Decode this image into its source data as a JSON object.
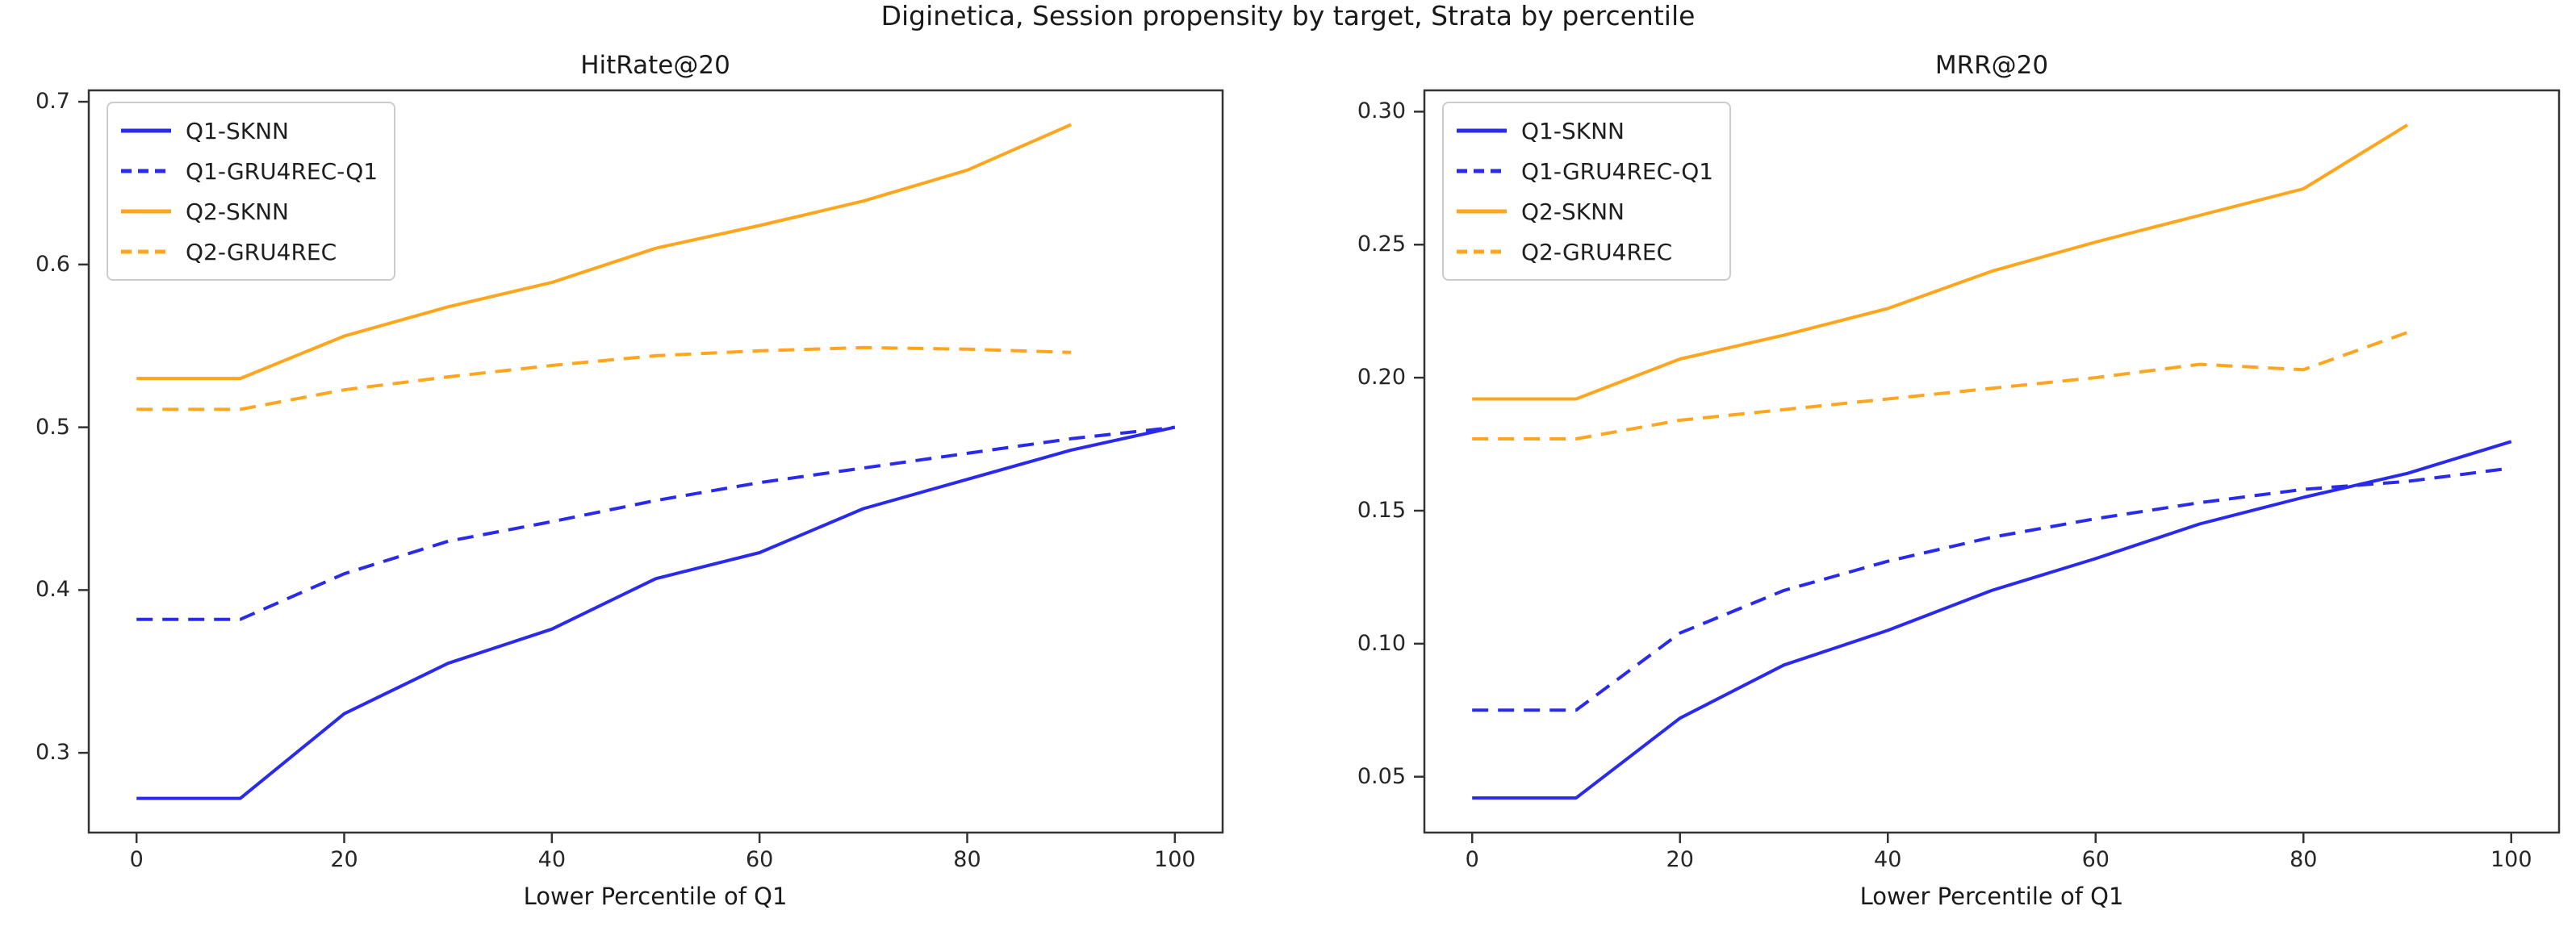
{
  "page_title": "Diginetica, Session propensity by target, Strata by percentile",
  "colors": {
    "line_blue": "#2a2aee",
    "line_orange": "#ffa51e",
    "axis": "#333333",
    "tick_text": "#262626",
    "text": "#1a1a1a",
    "legend_border": "#cccccc",
    "background": "#ffffff"
  },
  "legend_entries": [
    "Q1-SKNN",
    "Q1-GRU4REC-Q1",
    "Q2-SKNN",
    "Q2-GRU4REC"
  ],
  "chart_data": [
    {
      "type": "line",
      "title": "HitRate@20",
      "xlabel": "Lower Percentile of Q1",
      "grid": false,
      "legend_position": "upper-left",
      "xlim": [
        -4.6,
        104.6
      ],
      "ylim": [
        0.251,
        0.707
      ],
      "x_ticks": [
        {
          "v": 0,
          "label": "0"
        },
        {
          "v": 20,
          "label": "20"
        },
        {
          "v": 40,
          "label": "40"
        },
        {
          "v": 60,
          "label": "60"
        },
        {
          "v": 80,
          "label": "80"
        },
        {
          "v": 100,
          "label": "100"
        }
      ],
      "y_ticks": [
        {
          "v": 0.3,
          "label": "0.3"
        },
        {
          "v": 0.4,
          "label": "0.4"
        },
        {
          "v": 0.5,
          "label": "0.5"
        },
        {
          "v": 0.6,
          "label": "0.6"
        },
        {
          "v": 0.7,
          "label": "0.7"
        }
      ],
      "series": [
        {
          "name": "Q1-SKNN",
          "color": "#2a2aee",
          "dash": false,
          "x": [
            0,
            10,
            20,
            30,
            40,
            50,
            60,
            70,
            80,
            90,
            100
          ],
          "values": [
            0.272,
            0.272,
            0.324,
            0.355,
            0.376,
            0.407,
            0.423,
            0.45,
            0.468,
            0.486,
            0.5
          ]
        },
        {
          "name": "Q1-GRU4REC-Q1",
          "color": "#2a2aee",
          "dash": true,
          "x": [
            0,
            10,
            20,
            30,
            40,
            50,
            60,
            70,
            80,
            90,
            100
          ],
          "values": [
            0.382,
            0.382,
            0.41,
            0.43,
            0.442,
            0.455,
            0.466,
            0.475,
            0.484,
            0.493,
            0.5
          ]
        },
        {
          "name": "Q2-SKNN",
          "color": "#ffa51e",
          "dash": false,
          "x": [
            0,
            10,
            20,
            30,
            40,
            50,
            60,
            70,
            80,
            90
          ],
          "values": [
            0.53,
            0.53,
            0.556,
            0.574,
            0.589,
            0.61,
            0.624,
            0.639,
            0.658,
            0.686
          ]
        },
        {
          "name": "Q2-GRU4REC",
          "color": "#ffa51e",
          "dash": true,
          "x": [
            0,
            10,
            20,
            30,
            40,
            50,
            60,
            70,
            80,
            90
          ],
          "values": [
            0.511,
            0.511,
            0.523,
            0.531,
            0.538,
            0.544,
            0.547,
            0.549,
            0.548,
            0.546
          ]
        }
      ]
    },
    {
      "type": "line",
      "title": "MRR@20",
      "xlabel": "Lower Percentile of Q1",
      "grid": false,
      "legend_position": "upper-left",
      "xlim": [
        -4.6,
        104.6
      ],
      "ylim": [
        0.029,
        0.308
      ],
      "x_ticks": [
        {
          "v": 0,
          "label": "0"
        },
        {
          "v": 20,
          "label": "20"
        },
        {
          "v": 40,
          "label": "40"
        },
        {
          "v": 60,
          "label": "60"
        },
        {
          "v": 80,
          "label": "80"
        },
        {
          "v": 100,
          "label": "100"
        }
      ],
      "y_ticks": [
        {
          "v": 0.05,
          "label": "0.05"
        },
        {
          "v": 0.1,
          "label": "0.10"
        },
        {
          "v": 0.15,
          "label": "0.15"
        },
        {
          "v": 0.2,
          "label": "0.20"
        },
        {
          "v": 0.25,
          "label": "0.25"
        },
        {
          "v": 0.3,
          "label": "0.30"
        }
      ],
      "series": [
        {
          "name": "Q1-SKNN",
          "color": "#2a2aee",
          "dash": false,
          "x": [
            0,
            10,
            20,
            30,
            40,
            50,
            60,
            70,
            80,
            90,
            100
          ],
          "values": [
            0.042,
            0.042,
            0.072,
            0.092,
            0.105,
            0.12,
            0.132,
            0.145,
            0.155,
            0.164,
            0.176
          ]
        },
        {
          "name": "Q1-GRU4REC-Q1",
          "color": "#2a2aee",
          "dash": true,
          "x": [
            0,
            10,
            20,
            30,
            40,
            50,
            60,
            70,
            80,
            90,
            100
          ],
          "values": [
            0.075,
            0.075,
            0.104,
            0.12,
            0.131,
            0.14,
            0.147,
            0.153,
            0.158,
            0.161,
            0.166
          ]
        },
        {
          "name": "Q2-SKNN",
          "color": "#ffa51e",
          "dash": false,
          "x": [
            0,
            10,
            20,
            30,
            40,
            50,
            60,
            70,
            80,
            90
          ],
          "values": [
            0.192,
            0.192,
            0.207,
            0.216,
            0.226,
            0.24,
            0.251,
            0.261,
            0.271,
            0.295
          ]
        },
        {
          "name": "Q2-GRU4REC",
          "color": "#ffa51e",
          "dash": true,
          "x": [
            0,
            10,
            20,
            30,
            40,
            50,
            60,
            70,
            80,
            90
          ],
          "values": [
            0.177,
            0.177,
            0.184,
            0.188,
            0.192,
            0.196,
            0.2,
            0.205,
            0.203,
            0.217
          ]
        }
      ]
    }
  ]
}
